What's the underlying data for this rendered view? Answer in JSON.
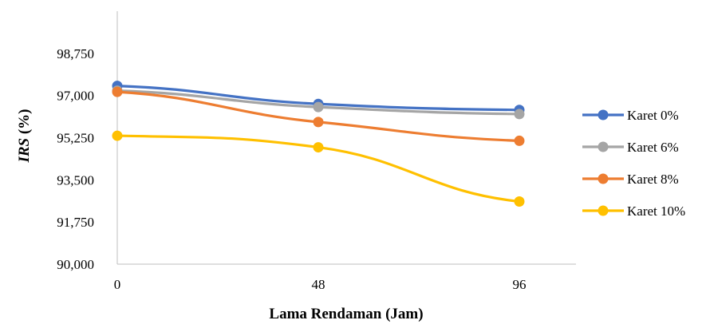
{
  "chart_data": {
    "type": "line",
    "x": [
      0,
      48,
      96
    ],
    "x_tick_labels": [
      "0",
      "48",
      "96"
    ],
    "xlabel": "Lama Rendaman (Jam)",
    "ylabel_prefix": "IRS",
    "ylabel_suffix": " (%)",
    "ylim": [
      90000,
      100500
    ],
    "y_ticks": [
      90000,
      91750,
      93500,
      95250,
      97000,
      98750
    ],
    "y_tick_labels": [
      "90,000",
      "91,750",
      "93,500",
      "95,250",
      "97,000",
      "98,750"
    ],
    "grid": false,
    "legend_position": "right",
    "series": [
      {
        "name": "Karet 0%",
        "color": "#4472C4",
        "values": [
          97400,
          96650,
          96400
        ]
      },
      {
        "name": "Karet 6%",
        "color": "#A5A5A5",
        "values": [
          97200,
          96520,
          96230
        ]
      },
      {
        "name": "Karet 8%",
        "color": "#ED7D31",
        "values": [
          97150,
          95900,
          95120
        ]
      },
      {
        "name": "Karet 10%",
        "color": "#FFC000",
        "values": [
          95330,
          94850,
          92600
        ]
      }
    ]
  }
}
